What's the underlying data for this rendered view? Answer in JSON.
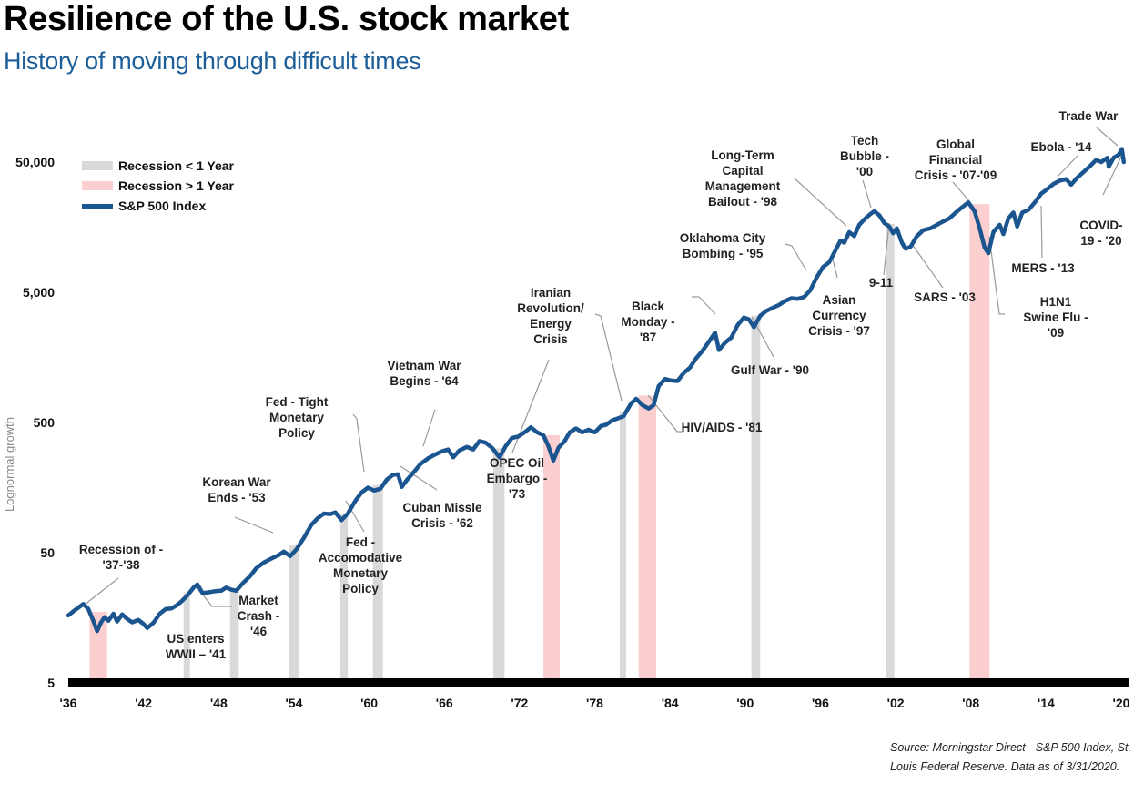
{
  "header": {
    "title": "Resilience of the U.S. stock market",
    "subtitle": "History of moving through difficult times"
  },
  "source_note": "Source: Morningstar Direct - S&P 500 Index, St. Louis Federal Reserve. Data as of 3/31/2020.",
  "colors": {
    "line": "#1b5590",
    "recession_short": "#d9d9d9",
    "recession_long": "#fbcfcf",
    "axis": "#000000",
    "subtitle": "#1f5f99",
    "leader": "#9a9a9a"
  },
  "chart_data": {
    "type": "line",
    "title": "Resilience of the U.S. stock market",
    "subtitle": "History of moving through difficult times",
    "xlabel": "",
    "ylabel": "Lognormal growth",
    "yscale": "log",
    "ylim": [
      5,
      50000
    ],
    "xlim": [
      1936,
      2020
    ],
    "grid": false,
    "legend_position": "top-left",
    "x_ticks": [
      1936,
      1942,
      1948,
      1954,
      1960,
      1966,
      1972,
      1978,
      1984,
      1990,
      1996,
      2002,
      2008,
      2014,
      2020
    ],
    "x_tick_labels": [
      "'36",
      "'42",
      "'48",
      "'54",
      "'60",
      "'66",
      "'72",
      "'78",
      "'84",
      "'90",
      "'96",
      "'02",
      "'08",
      "'14",
      "'20"
    ],
    "y_ticks": [
      5,
      50,
      500,
      5000,
      50000
    ],
    "y_tick_labels": [
      "5",
      "50",
      "500",
      "5,000",
      "50,000"
    ],
    "legend": [
      {
        "label": "Recession < 1 Year",
        "kind": "recession_short"
      },
      {
        "label": "Recession > 1 Year",
        "kind": "recession_long"
      },
      {
        "label": "S&P 500 Index",
        "kind": "line"
      }
    ],
    "recessions": [
      {
        "start": 1937.7,
        "end": 1939.1,
        "kind": "recession_long"
      },
      {
        "start": 1945.2,
        "end": 1945.7,
        "kind": "recession_short"
      },
      {
        "start": 1948.9,
        "end": 1949.6,
        "kind": "recession_short"
      },
      {
        "start": 1953.6,
        "end": 1954.4,
        "kind": "recession_short"
      },
      {
        "start": 1957.7,
        "end": 1958.3,
        "kind": "recession_short"
      },
      {
        "start": 1960.3,
        "end": 1961.1,
        "kind": "recession_short"
      },
      {
        "start": 1969.9,
        "end": 1970.8,
        "kind": "recession_short"
      },
      {
        "start": 1973.9,
        "end": 1975.2,
        "kind": "recession_long"
      },
      {
        "start": 1980.0,
        "end": 1980.5,
        "kind": "recession_short"
      },
      {
        "start": 1981.5,
        "end": 1982.9,
        "kind": "recession_long"
      },
      {
        "start": 1990.5,
        "end": 1991.2,
        "kind": "recession_short"
      },
      {
        "start": 2001.2,
        "end": 2001.9,
        "kind": "recession_short"
      },
      {
        "start": 2007.9,
        "end": 2009.5,
        "kind": "recession_long"
      }
    ],
    "series": [
      {
        "name": "S&P 500 Index",
        "points": [
          [
            1936.0,
            16.5
          ],
          [
            1936.5,
            18.0
          ],
          [
            1937.2,
            20.2
          ],
          [
            1937.6,
            18.5
          ],
          [
            1938.0,
            15.0
          ],
          [
            1938.3,
            12.5
          ],
          [
            1938.6,
            14.5
          ],
          [
            1938.9,
            16.0
          ],
          [
            1939.2,
            15.0
          ],
          [
            1939.6,
            17.0
          ],
          [
            1939.9,
            14.8
          ],
          [
            1940.3,
            16.8
          ],
          [
            1940.7,
            15.5
          ],
          [
            1941.1,
            14.6
          ],
          [
            1941.6,
            15.2
          ],
          [
            1942.0,
            14.2
          ],
          [
            1942.3,
            13.2
          ],
          [
            1942.8,
            14.5
          ],
          [
            1943.3,
            17.0
          ],
          [
            1943.8,
            18.5
          ],
          [
            1944.2,
            18.6
          ],
          [
            1944.6,
            19.6
          ],
          [
            1945.0,
            21.0
          ],
          [
            1945.5,
            23.5
          ],
          [
            1946.0,
            27.0
          ],
          [
            1946.3,
            28.5
          ],
          [
            1946.7,
            24.5
          ],
          [
            1947.2,
            24.8
          ],
          [
            1947.7,
            25.3
          ],
          [
            1948.2,
            25.5
          ],
          [
            1948.6,
            27.0
          ],
          [
            1949.0,
            26.0
          ],
          [
            1949.4,
            25.5
          ],
          [
            1949.9,
            29.0
          ],
          [
            1950.5,
            33.0
          ],
          [
            1951.0,
            38.0
          ],
          [
            1951.6,
            42.0
          ],
          [
            1952.2,
            45.0
          ],
          [
            1952.8,
            48.0
          ],
          [
            1953.2,
            51.0
          ],
          [
            1953.7,
            47.0
          ],
          [
            1954.2,
            53.0
          ],
          [
            1954.8,
            65.0
          ],
          [
            1955.4,
            82.0
          ],
          [
            1955.9,
            92.0
          ],
          [
            1956.4,
            100.0
          ],
          [
            1956.9,
            99.0
          ],
          [
            1957.3,
            102.0
          ],
          [
            1957.8,
            89.0
          ],
          [
            1958.3,
            100.0
          ],
          [
            1958.9,
            125.0
          ],
          [
            1959.4,
            145.0
          ],
          [
            1959.9,
            158.0
          ],
          [
            1960.4,
            150.0
          ],
          [
            1960.9,
            155.0
          ],
          [
            1961.4,
            182.0
          ],
          [
            1961.9,
            198.0
          ],
          [
            1962.3,
            200.0
          ],
          [
            1962.6,
            160.0
          ],
          [
            1963.0,
            180.0
          ],
          [
            1963.6,
            210.0
          ],
          [
            1964.1,
            240.0
          ],
          [
            1964.7,
            265.0
          ],
          [
            1965.3,
            285.0
          ],
          [
            1965.8,
            300.0
          ],
          [
            1966.3,
            310.0
          ],
          [
            1966.7,
            270.0
          ],
          [
            1967.2,
            305.0
          ],
          [
            1967.8,
            325.0
          ],
          [
            1968.3,
            310.0
          ],
          [
            1968.8,
            360.0
          ],
          [
            1969.3,
            350.0
          ],
          [
            1969.8,
            320.0
          ],
          [
            1970.4,
            270.0
          ],
          [
            1970.9,
            330.0
          ],
          [
            1971.4,
            380.0
          ],
          [
            1971.9,
            390.0
          ],
          [
            1972.4,
            420.0
          ],
          [
            1972.9,
            460.0
          ],
          [
            1973.4,
            420.0
          ],
          [
            1973.9,
            400.0
          ],
          [
            1974.3,
            330.0
          ],
          [
            1974.7,
            255.0
          ],
          [
            1975.1,
            320.0
          ],
          [
            1975.6,
            360.0
          ],
          [
            1976.0,
            420.0
          ],
          [
            1976.5,
            450.0
          ],
          [
            1977.0,
            420.0
          ],
          [
            1977.5,
            440.0
          ],
          [
            1978.0,
            420.0
          ],
          [
            1978.5,
            470.0
          ],
          [
            1978.9,
            480.0
          ],
          [
            1979.4,
            520.0
          ],
          [
            1979.9,
            540.0
          ],
          [
            1980.3,
            560.0
          ],
          [
            1980.9,
            700.0
          ],
          [
            1981.3,
            760.0
          ],
          [
            1981.8,
            680.0
          ],
          [
            1982.3,
            640.0
          ],
          [
            1982.7,
            680.0
          ],
          [
            1983.1,
            950.0
          ],
          [
            1983.6,
            1080.0
          ],
          [
            1984.1,
            1050.0
          ],
          [
            1984.6,
            1040.0
          ],
          [
            1985.1,
            1200.0
          ],
          [
            1985.6,
            1320.0
          ],
          [
            1986.1,
            1560.0
          ],
          [
            1986.6,
            1780.0
          ],
          [
            1987.2,
            2150.0
          ],
          [
            1987.6,
            2450.0
          ],
          [
            1987.9,
            1800.0
          ],
          [
            1988.4,
            2050.0
          ],
          [
            1988.9,
            2250.0
          ],
          [
            1989.4,
            2800.0
          ],
          [
            1989.9,
            3200.0
          ],
          [
            1990.3,
            3100.0
          ],
          [
            1990.7,
            2700.0
          ],
          [
            1991.2,
            3300.0
          ],
          [
            1991.7,
            3600.0
          ],
          [
            1992.2,
            3800.0
          ],
          [
            1992.7,
            4000.0
          ],
          [
            1993.2,
            4300.0
          ],
          [
            1993.7,
            4500.0
          ],
          [
            1994.2,
            4450.0
          ],
          [
            1994.7,
            4600.0
          ],
          [
            1995.2,
            5200.0
          ],
          [
            1995.7,
            6500.0
          ],
          [
            1996.2,
            7800.0
          ],
          [
            1996.7,
            8500.0
          ],
          [
            1997.2,
            10500.0
          ],
          [
            1997.6,
            12500.0
          ],
          [
            1997.9,
            12000.0
          ],
          [
            1998.3,
            14500.0
          ],
          [
            1998.7,
            13500.0
          ],
          [
            1999.1,
            16500.0
          ],
          [
            1999.6,
            18500.0
          ],
          [
            2000.0,
            20000.0
          ],
          [
            2000.3,
            21000.0
          ],
          [
            2000.7,
            19500.0
          ],
          [
            2001.1,
            17000.0
          ],
          [
            2001.5,
            16000.0
          ],
          [
            2001.8,
            14200.0
          ],
          [
            2002.1,
            15500.0
          ],
          [
            2002.5,
            12000.0
          ],
          [
            2002.8,
            10800.0
          ],
          [
            2003.2,
            11200.0
          ],
          [
            2003.7,
            13500.0
          ],
          [
            2004.2,
            15000.0
          ],
          [
            2004.8,
            15500.0
          ],
          [
            2005.3,
            16500.0
          ],
          [
            2005.8,
            17500.0
          ],
          [
            2006.3,
            18500.0
          ],
          [
            2006.8,
            20500.0
          ],
          [
            2007.3,
            22500.0
          ],
          [
            2007.8,
            24500.0
          ],
          [
            2008.3,
            21000.0
          ],
          [
            2008.7,
            15500.0
          ],
          [
            2009.1,
            11000.0
          ],
          [
            2009.4,
            10000.0
          ],
          [
            2009.8,
            14500.0
          ],
          [
            2010.3,
            16500.0
          ],
          [
            2010.6,
            14000.0
          ],
          [
            2011.0,
            18500.0
          ],
          [
            2011.4,
            20500.0
          ],
          [
            2011.7,
            16000.0
          ],
          [
            2012.1,
            20500.0
          ],
          [
            2012.6,
            21500.0
          ],
          [
            2013.1,
            24500.0
          ],
          [
            2013.6,
            28500.0
          ],
          [
            2014.1,
            31000.0
          ],
          [
            2014.6,
            34000.0
          ],
          [
            2015.1,
            36000.0
          ],
          [
            2015.6,
            37000.0
          ],
          [
            2016.0,
            33500.0
          ],
          [
            2016.5,
            38000.0
          ],
          [
            2017.0,
            42000.0
          ],
          [
            2017.5,
            46500.0
          ],
          [
            2018.0,
            52000.0
          ],
          [
            2018.4,
            50000.0
          ],
          [
            2018.9,
            54000.0
          ],
          [
            2019.0,
            46000.0
          ],
          [
            2019.4,
            54000.0
          ],
          [
            2019.8,
            57000.0
          ],
          [
            2020.05,
            63000.0
          ],
          [
            2020.2,
            50000.0
          ]
        ]
      }
    ],
    "annotations": [
      {
        "text": [
          "Recession of -",
          "'37-'38"
        ],
        "at": 1937.3
      },
      {
        "text": [
          "US enters",
          "WWII – '41"
        ],
        "at": 1945.5
      },
      {
        "text": [
          "Market",
          "Crash -",
          "'46"
        ],
        "at": 1946.5
      },
      {
        "text": [
          "Korean War",
          "Ends - '53"
        ],
        "at": 1953.2
      },
      {
        "text": [
          "Fed - Tight",
          "Monetary",
          "Policy"
        ],
        "at": 1959.6
      },
      {
        "text": [
          "Fed -",
          "Accomodative",
          "Monetary",
          "Policy"
        ],
        "at": 1957.9
      },
      {
        "text": [
          "Cuban Missle",
          "Crisis - '62"
        ],
        "at": 1962.6
      },
      {
        "text": [
          "Vietnam War",
          "Begins - '64"
        ],
        "at": 1964.2
      },
      {
        "text": [
          "OPEC Oil",
          "Embargo -",
          "'73"
        ],
        "at": 1973.4
      },
      {
        "text": [
          "Iranian",
          "Revolution/",
          "Energy",
          "Crisis"
        ],
        "at": 1980.2
      },
      {
        "text": [
          "HIV/AIDS - '81"
        ],
        "at": 1981.8
      },
      {
        "text": [
          "Black",
          "Monday -",
          "'87"
        ],
        "at": 1987.6
      },
      {
        "text": [
          "Gulf War - '90"
        ],
        "at": 1990.7
      },
      {
        "text": [
          "Oklahoma City",
          "Bombing - '95"
        ],
        "at": 1995.3
      },
      {
        "text": [
          "Asian",
          "Currency",
          "Crisis - '97"
        ],
        "at": 1997.6
      },
      {
        "text": [
          "Long-Term",
          "Capital",
          "Management",
          "Bailout - '98"
        ],
        "at": 1998.7
      },
      {
        "text": [
          "Tech",
          "Bubble -",
          "'00"
        ],
        "at": 2000.3
      },
      {
        "text": [
          "9-11"
        ],
        "at": 2001.5
      },
      {
        "text": [
          "SARS - '03"
        ],
        "at": 2002.9
      },
      {
        "text": [
          "Global",
          "Financial",
          "Crisis - '07-'09"
        ],
        "at": 2007.8
      },
      {
        "text": [
          "H1N1",
          "Swine Flu -",
          "'09"
        ],
        "at": 2009.4
      },
      {
        "text": [
          "MERS - '13"
        ],
        "at": 2013.7
      },
      {
        "text": [
          "Ebola - '14"
        ],
        "at": 2014.5
      },
      {
        "text": [
          "Trade War"
        ],
        "at": 2019.8
      },
      {
        "text": [
          "COVID-",
          "19 - '20"
        ],
        "at": 2020.2
      }
    ]
  }
}
